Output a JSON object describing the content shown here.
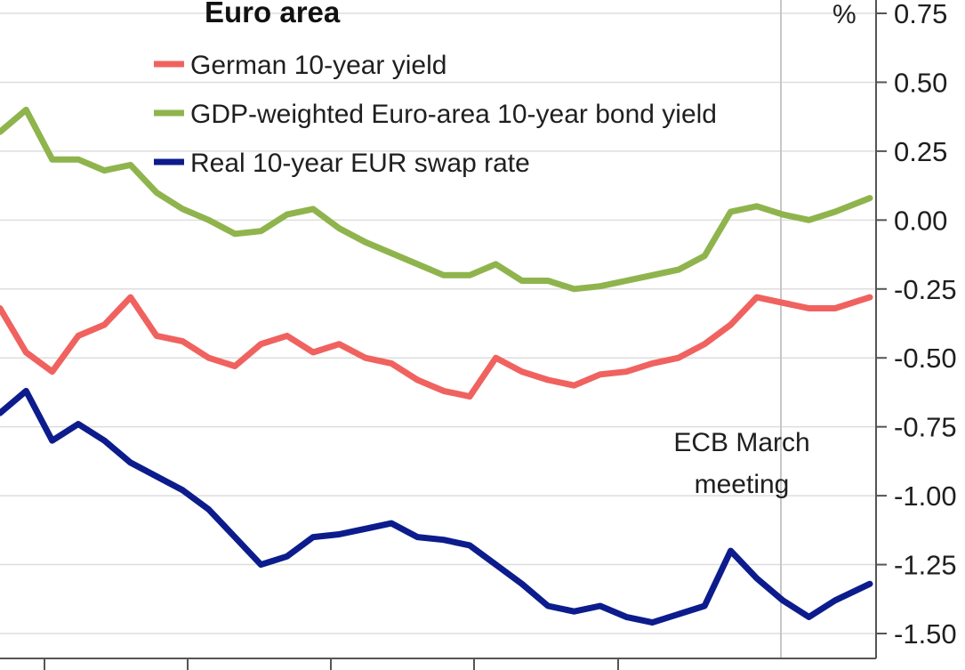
{
  "chart_data": {
    "type": "line",
    "title": "Euro area",
    "unit": "%",
    "ylim": [
      -1.55,
      0.8
    ],
    "y_ticks": [
      "0.75",
      "0.50",
      "0.25",
      "0.00",
      "-0.25",
      "-0.50",
      "-0.75",
      "-1.00",
      "-1.25",
      "-1.50"
    ],
    "y_tick_values": [
      0.75,
      0.5,
      0.25,
      0.0,
      -0.25,
      -0.5,
      -0.75,
      -1.0,
      -1.25,
      -1.5
    ],
    "grid": true,
    "legend_position": "top",
    "annotations": [
      {
        "lines": [
          "ECB March",
          "meeting"
        ],
        "x_fraction": 0.9
      }
    ],
    "series": [
      {
        "name": "German 10-year yield",
        "color": "#f0625f",
        "x": [
          0.0,
          0.03,
          0.06,
          0.09,
          0.12,
          0.15,
          0.18,
          0.21,
          0.24,
          0.27,
          0.3,
          0.33,
          0.36,
          0.39,
          0.42,
          0.45,
          0.48,
          0.51,
          0.54,
          0.57,
          0.6,
          0.63,
          0.66,
          0.69,
          0.72,
          0.75,
          0.78,
          0.81,
          0.84,
          0.87,
          0.9,
          0.93,
          0.96,
          1.0
        ],
        "values": [
          -0.32,
          -0.48,
          -0.55,
          -0.42,
          -0.38,
          -0.28,
          -0.42,
          -0.44,
          -0.5,
          -0.53,
          -0.45,
          -0.42,
          -0.48,
          -0.45,
          -0.5,
          -0.52,
          -0.58,
          -0.62,
          -0.64,
          -0.5,
          -0.55,
          -0.58,
          -0.6,
          -0.56,
          -0.55,
          -0.52,
          -0.5,
          -0.45,
          -0.38,
          -0.28,
          -0.3,
          -0.32,
          -0.32,
          -0.28
        ]
      },
      {
        "name": "GDP-weighted Euro-area 10-year bond yield",
        "color": "#8fb44d",
        "x": [
          0.0,
          0.03,
          0.06,
          0.09,
          0.12,
          0.15,
          0.18,
          0.21,
          0.24,
          0.27,
          0.3,
          0.33,
          0.36,
          0.39,
          0.42,
          0.45,
          0.48,
          0.51,
          0.54,
          0.57,
          0.6,
          0.63,
          0.66,
          0.69,
          0.72,
          0.75,
          0.78,
          0.81,
          0.84,
          0.87,
          0.9,
          0.93,
          0.96,
          1.0
        ],
        "values": [
          0.32,
          0.4,
          0.22,
          0.22,
          0.18,
          0.2,
          0.1,
          0.04,
          0.0,
          -0.05,
          -0.04,
          0.02,
          0.04,
          -0.03,
          -0.08,
          -0.12,
          -0.16,
          -0.2,
          -0.2,
          -0.16,
          -0.22,
          -0.22,
          -0.25,
          -0.24,
          -0.22,
          -0.2,
          -0.18,
          -0.13,
          0.03,
          0.05,
          0.02,
          0.0,
          0.03,
          0.08
        ]
      },
      {
        "name": "Real 10-year EUR swap rate",
        "color": "#0d1c8c",
        "x": [
          0.0,
          0.03,
          0.06,
          0.09,
          0.12,
          0.15,
          0.18,
          0.21,
          0.24,
          0.27,
          0.3,
          0.33,
          0.36,
          0.39,
          0.42,
          0.45,
          0.48,
          0.51,
          0.54,
          0.57,
          0.6,
          0.63,
          0.66,
          0.69,
          0.72,
          0.75,
          0.78,
          0.81,
          0.84,
          0.87,
          0.9,
          0.93,
          0.96,
          1.0
        ],
        "values": [
          -0.7,
          -0.62,
          -0.8,
          -0.74,
          -0.8,
          -0.88,
          -0.93,
          -0.98,
          -1.05,
          -1.15,
          -1.25,
          -1.22,
          -1.15,
          -1.14,
          -1.12,
          -1.1,
          -1.15,
          -1.16,
          -1.18,
          -1.25,
          -1.32,
          -1.4,
          -1.42,
          -1.4,
          -1.44,
          -1.46,
          -1.43,
          -1.4,
          -1.2,
          -1.3,
          -1.38,
          -1.44,
          -1.38,
          -1.32
        ]
      }
    ]
  }
}
